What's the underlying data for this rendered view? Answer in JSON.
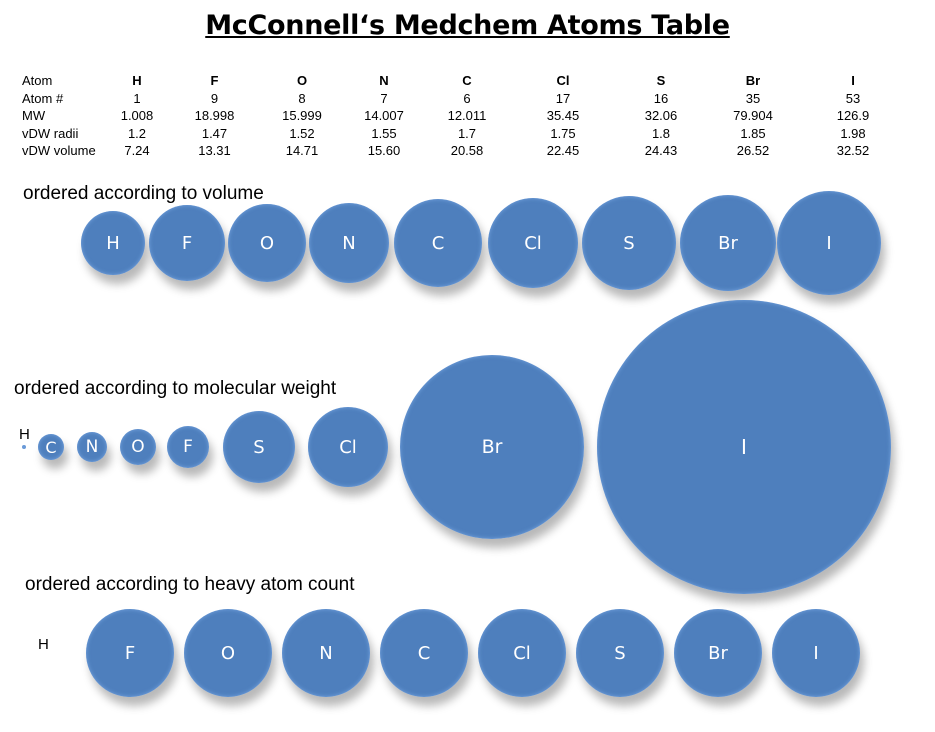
{
  "title": "McConnell‘s Medchem Atoms Table",
  "table": {
    "rows": [
      {
        "label": "Atom",
        "values": [
          "H",
          "F",
          "O",
          "N",
          "C",
          "Cl",
          "S",
          "Br",
          "I"
        ]
      },
      {
        "label": "Atom #",
        "values": [
          "1",
          "9",
          "8",
          "7",
          "6",
          "17",
          "16",
          "35",
          "53"
        ]
      },
      {
        "label": "MW",
        "values": [
          "1.008",
          "18.998",
          "15.999",
          "14.007",
          "12.011",
          "35.45",
          "32.06",
          "79.904",
          "126.9"
        ]
      },
      {
        "label": "vDW radii",
        "values": [
          "1.2",
          "1.47",
          "1.52",
          "1.55",
          "1.7",
          "1.75",
          "1.8",
          "1.85",
          "1.98"
        ]
      },
      {
        "label": "vDW volume",
        "values": [
          "7.24",
          "13.31",
          "14.71",
          "15.60",
          "20.58",
          "22.45",
          "24.43",
          "26.52",
          "32.52"
        ]
      }
    ]
  },
  "sections": [
    {
      "label": "ordered according to volume",
      "atoms": [
        {
          "symbol": "H",
          "value": 7.24
        },
        {
          "symbol": "F",
          "value": 13.31
        },
        {
          "symbol": "O",
          "value": 14.71
        },
        {
          "symbol": "N",
          "value": 15.6
        },
        {
          "symbol": "C",
          "value": 20.58
        },
        {
          "symbol": "Cl",
          "value": 22.45
        },
        {
          "symbol": "S",
          "value": 24.43
        },
        {
          "symbol": "Br",
          "value": 26.52
        },
        {
          "symbol": "I",
          "value": 32.52
        }
      ]
    },
    {
      "label": "ordered according to molecular weight",
      "atoms": [
        {
          "symbol": "H",
          "value": 1.008
        },
        {
          "symbol": "C",
          "value": 12.011
        },
        {
          "symbol": "N",
          "value": 14.007
        },
        {
          "symbol": "O",
          "value": 15.999
        },
        {
          "symbol": "F",
          "value": 18.998
        },
        {
          "symbol": "S",
          "value": 32.06
        },
        {
          "symbol": "Cl",
          "value": 35.45
        },
        {
          "symbol": "Br",
          "value": 79.904
        },
        {
          "symbol": "I",
          "value": 126.9
        }
      ]
    },
    {
      "label": "ordered according to heavy atom count",
      "atoms": [
        {
          "symbol": "H",
          "value": 0
        },
        {
          "symbol": "F",
          "value": 1
        },
        {
          "symbol": "O",
          "value": 1
        },
        {
          "symbol": "N",
          "value": 1
        },
        {
          "symbol": "C",
          "value": 1
        },
        {
          "symbol": "Cl",
          "value": 1
        },
        {
          "symbol": "S",
          "value": 1
        },
        {
          "symbol": "Br",
          "value": 1
        },
        {
          "symbol": "I",
          "value": 1
        }
      ]
    }
  ]
}
